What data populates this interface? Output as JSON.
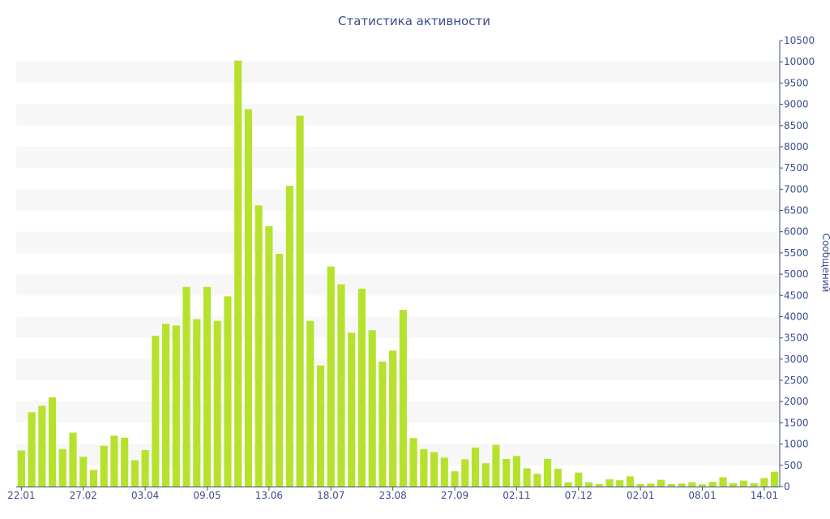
{
  "chart_data": {
    "type": "bar",
    "title": "Статистика активности",
    "xlabel": "",
    "ylabel": "Сообщений",
    "y_axis_side": "right",
    "ylim": [
      0,
      10500
    ],
    "yticks": [
      0,
      500,
      1000,
      1500,
      2000,
      2500,
      3000,
      3500,
      4000,
      4500,
      5000,
      5500,
      6000,
      6500,
      7000,
      7500,
      8000,
      8500,
      9000,
      9500,
      10000,
      10500
    ],
    "x_tick_labels": [
      {
        "index": 0,
        "label": "22.01"
      },
      {
        "index": 6,
        "label": "27.02"
      },
      {
        "index": 12,
        "label": "03.04"
      },
      {
        "index": 18,
        "label": "09.05"
      },
      {
        "index": 24,
        "label": "13.06"
      },
      {
        "index": 30,
        "label": "18.07"
      },
      {
        "index": 36,
        "label": "23.08"
      },
      {
        "index": 42,
        "label": "27.09"
      },
      {
        "index": 48,
        "label": "02.11"
      },
      {
        "index": 54,
        "label": "07.12"
      },
      {
        "index": 60,
        "label": "02.01"
      },
      {
        "index": 66,
        "label": "08.01"
      },
      {
        "index": 72,
        "label": "14.01"
      }
    ],
    "values": [
      850,
      1750,
      1900,
      2100,
      880,
      1270,
      700,
      390,
      960,
      1200,
      1150,
      620,
      860,
      3550,
      3830,
      3790,
      4700,
      3940,
      4700,
      3900,
      4480,
      10030,
      8880,
      6620,
      6130,
      5480,
      7080,
      8730,
      3900,
      2850,
      5180,
      4760,
      3620,
      4660,
      3680,
      2940,
      3200,
      4160,
      1140,
      880,
      810,
      680,
      360,
      640,
      920,
      550,
      980,
      650,
      720,
      430,
      300,
      650,
      420,
      100,
      330,
      100,
      60,
      170,
      150,
      240,
      60,
      70,
      160,
      60,
      70,
      100,
      50,
      110,
      220,
      80,
      140,
      80,
      200,
      350
    ],
    "bar_color": "#b6e22e",
    "band_color": "#f7f7f7",
    "text_color": "#3b4e8c",
    "grid": "alternating horizontal bands",
    "legend": "none"
  }
}
